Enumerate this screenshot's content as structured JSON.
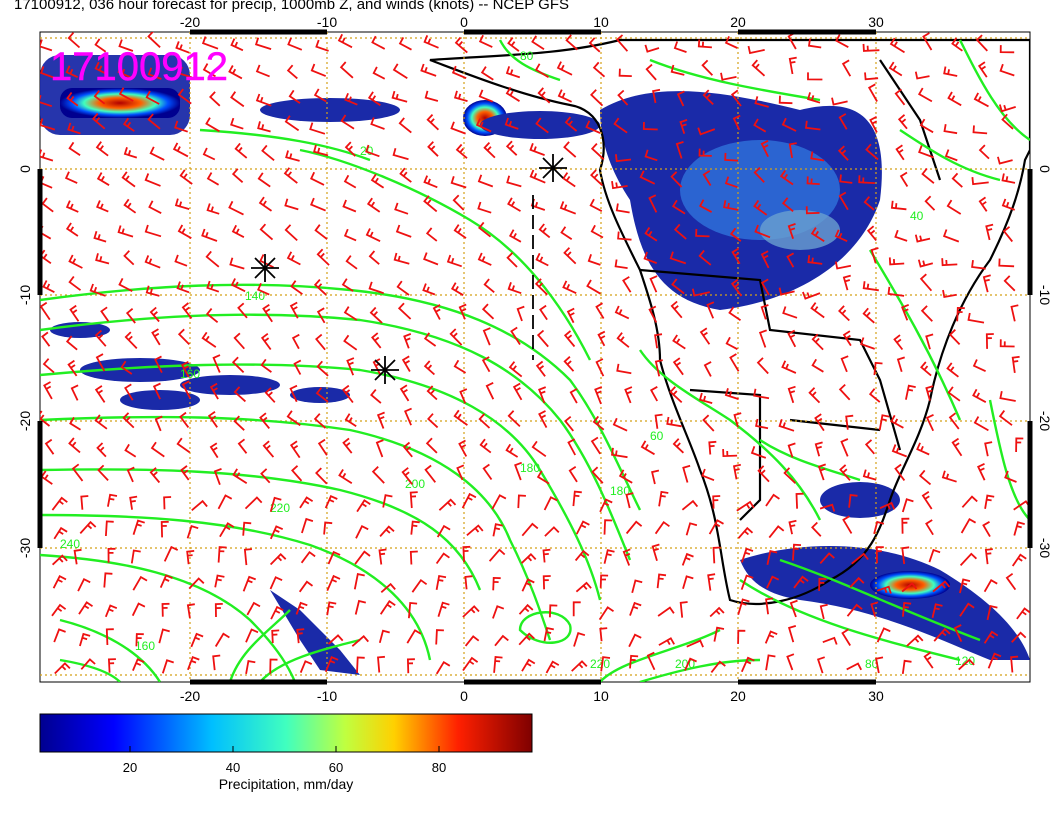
{
  "title": "17100912, 036 hour forecast for precip, 1000mb Z, and winds (knots) -- NCEP GFS",
  "map_stamp": "17100912",
  "axes": {
    "x_ticks": [
      "-20",
      "-10",
      "0",
      "10",
      "20",
      "30"
    ],
    "y_ticks": [
      "0",
      "-10",
      "-20",
      "-30"
    ]
  },
  "contour_labels": [
    "20",
    "140",
    "160",
    "180",
    "200",
    "220",
    "240",
    "220",
    "200",
    "180",
    "60",
    "80",
    "120",
    "160",
    "40",
    "80"
  ],
  "colorbar": {
    "label": "Precipitation, mm/day",
    "ticks": [
      "20",
      "40",
      "60",
      "80"
    ],
    "min": 0,
    "max": 100
  },
  "colors": {
    "contour": "#22ee22",
    "barb": "#ee1111",
    "grid": "#d4a017",
    "stamp": "#ff00ff",
    "coast": "#000000"
  },
  "markers": [
    "asterisk",
    "asterisk",
    "asterisk"
  ]
}
